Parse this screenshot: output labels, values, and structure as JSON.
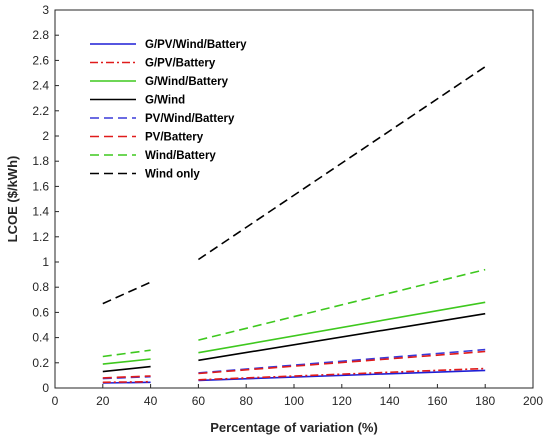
{
  "chart_data": {
    "type": "line",
    "xlabel": "Percentage of variation (%)",
    "ylabel": "LCOE ($/kWh)",
    "xlim": [
      0,
      200
    ],
    "ylim": [
      0,
      3
    ],
    "xticks": [
      0,
      20,
      40,
      60,
      80,
      100,
      120,
      140,
      160,
      180,
      200
    ],
    "yticks": [
      0,
      0.2,
      0.4,
      0.6,
      0.8,
      1,
      1.2,
      1.4,
      1.6,
      1.8,
      2,
      2.2,
      2.4,
      2.6,
      2.8,
      3
    ],
    "grid": false,
    "legend_position": "top-left",
    "series": [
      {
        "name": "G/PV/Wind/Battery",
        "color": "#1f1fd6",
        "dash": "solid",
        "segments": [
          {
            "x": [
              20,
              40
            ],
            "y": [
              0.04,
              0.045
            ]
          },
          {
            "x": [
              60,
              180
            ],
            "y": [
              0.06,
              0.14
            ]
          }
        ]
      },
      {
        "name": "G/PV/Battery",
        "color": "#e01b1b",
        "dash": "dashdot",
        "segments": [
          {
            "x": [
              20,
              40
            ],
            "y": [
              0.045,
              0.05
            ]
          },
          {
            "x": [
              60,
              180
            ],
            "y": [
              0.065,
              0.155
            ]
          }
        ]
      },
      {
        "name": "G/Wind/Battery",
        "color": "#3ec81e",
        "dash": "solid",
        "segments": [
          {
            "x": [
              20,
              40
            ],
            "y": [
              0.19,
              0.23
            ]
          },
          {
            "x": [
              60,
              180
            ],
            "y": [
              0.28,
              0.68
            ]
          }
        ]
      },
      {
        "name": "G/Wind",
        "color": "#000000",
        "dash": "solid",
        "segments": [
          {
            "x": [
              20,
              40
            ],
            "y": [
              0.13,
              0.17
            ]
          },
          {
            "x": [
              60,
              180
            ],
            "y": [
              0.22,
              0.59
            ]
          }
        ]
      },
      {
        "name": "PV/Wind/Battery",
        "color": "#3a3ad8",
        "dash": "dashed",
        "segments": [
          {
            "x": [
              20,
              40
            ],
            "y": [
              0.075,
              0.09
            ]
          },
          {
            "x": [
              60,
              180
            ],
            "y": [
              0.12,
              0.305
            ]
          }
        ]
      },
      {
        "name": "PV/Battery",
        "color": "#e01b1b",
        "dash": "dashed",
        "segments": [
          {
            "x": [
              20,
              40
            ],
            "y": [
              0.08,
              0.095
            ]
          },
          {
            "x": [
              60,
              180
            ],
            "y": [
              0.115,
              0.29
            ]
          }
        ]
      },
      {
        "name": "Wind/Battery",
        "color": "#3ec81e",
        "dash": "dashed",
        "segments": [
          {
            "x": [
              20,
              40
            ],
            "y": [
              0.25,
              0.3
            ]
          },
          {
            "x": [
              60,
              180
            ],
            "y": [
              0.38,
              0.94
            ]
          }
        ]
      },
      {
        "name": "Wind only",
        "color": "#000000",
        "dash": "dashed",
        "segments": [
          {
            "x": [
              20,
              40
            ],
            "y": [
              0.67,
              0.84
            ]
          },
          {
            "x": [
              60,
              180
            ],
            "y": [
              1.02,
              2.55
            ]
          }
        ]
      }
    ]
  }
}
